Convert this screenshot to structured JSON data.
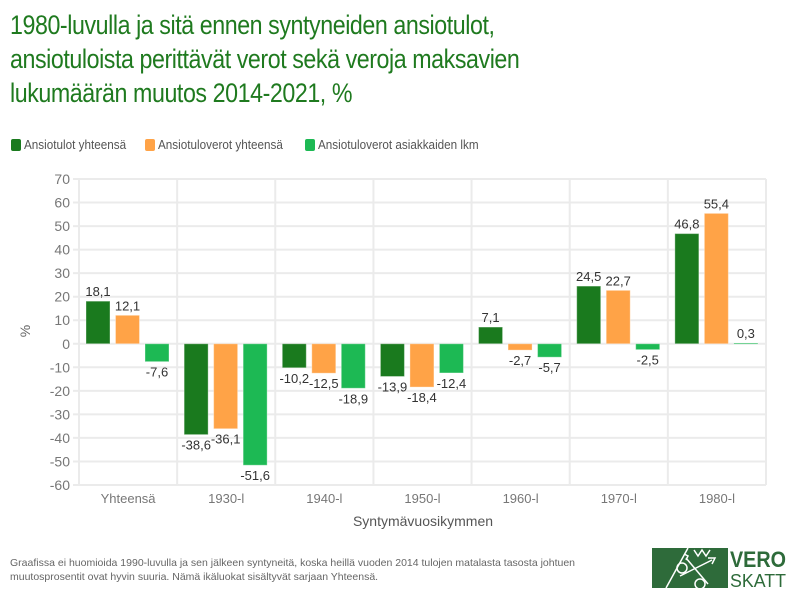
{
  "title": "1980-luvulla ja sitä ennen syntyneiden ansiotulot, ansiotuloista perittävät verot sekä veroja maksavien lukumäärän muutos 2014-2021, %",
  "title_lines": [
    "1980-luvulla ja sitä ennen syntyneiden ansiotulot,",
    "ansiotuloista perittävät verot sekä veroja maksavien",
    "lukumäärän muutos 2014-2021, %"
  ],
  "footnote_lines": [
    "Graafissa ei huomioida 1990-luvulla ja sen jälkeen syntyneitä, koska heillä vuoden 2014 tulojen matalasta tasosta johtuen",
    "muutosprosentit ovat hyvin suuria. Nämä ikäluokat sisältyvät sarjaan Yhteensä."
  ],
  "logo": {
    "top": "VERO",
    "bottom": "SKATT",
    "color": "#2e6b3a"
  },
  "chart_data": {
    "type": "bar",
    "title": "1980-luvulla ja sitä ennen syntyneiden ansiotulot, ansiotuloista perittävät verot sekä veroja maksavien lukumäärän muutos 2014-2021, %",
    "xlabel": "Syntymävuosikymmen",
    "ylabel": "%",
    "ylim": [
      -60,
      70
    ],
    "yticks": [
      70,
      60,
      50,
      40,
      30,
      20,
      10,
      0,
      -10,
      -20,
      -30,
      -40,
      -50,
      -60
    ],
    "ytick_labels": [
      "70",
      "60",
      "50",
      "40",
      "30",
      "20",
      "10",
      "0",
      "-10",
      "-20",
      "-30",
      "-40",
      "-50",
      "-60"
    ],
    "grid": true,
    "legend_position": "top-left",
    "categories": [
      "Yhteensä",
      "1930-l",
      "1940-l",
      "1950-l",
      "1960-l",
      "1970-l",
      "1980-l"
    ],
    "series": [
      {
        "name": "Ansiotulot yhteensä",
        "color": "#1a7a1e",
        "values": [
          18.1,
          -38.6,
          -10.2,
          -13.9,
          7.1,
          24.5,
          46.8
        ],
        "labels": [
          "18,1",
          "-38,6",
          "-10,2",
          "-13,9",
          "7,1",
          "24,5",
          "46,8"
        ]
      },
      {
        "name": "Ansiotuloverot yhteensä",
        "color": "#ffa347",
        "values": [
          12.1,
          -36.1,
          -12.5,
          -18.4,
          -2.7,
          22.7,
          55.4
        ],
        "labels": [
          "12,1",
          "-36,1",
          "-12,5",
          "-18,4",
          "-2,7",
          "22,7",
          "55,4"
        ]
      },
      {
        "name": "Ansiotuloverot asiakkaiden lkm",
        "color": "#1db954",
        "values": [
          -7.6,
          -51.6,
          -18.9,
          -12.4,
          -5.7,
          -2.5,
          0.3
        ],
        "labels": [
          "-7,6",
          "-51,6",
          "-18,9",
          "-12,4",
          "-5,7",
          "-2,5",
          "0,3"
        ]
      }
    ]
  }
}
